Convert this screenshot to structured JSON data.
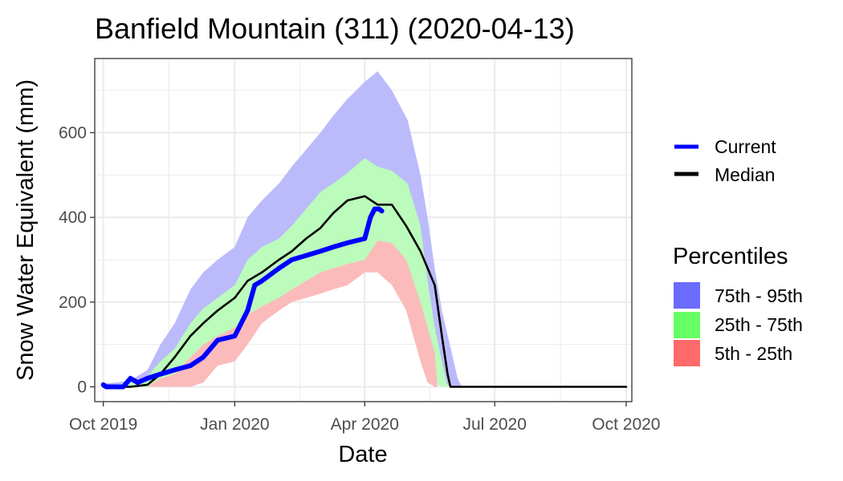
{
  "chart_data": {
    "type": "area",
    "title": "Banfield Mountain (311) (2020-04-13)",
    "xlabel": "Date",
    "ylabel": "Snow Water Equivalent (mm)",
    "x_range": [
      "2019-09-25",
      "2020-10-05"
    ],
    "ylim": [
      -35,
      775
    ],
    "x_ticks": [
      {
        "date": "2019-10-01",
        "label": "Oct 2019"
      },
      {
        "date": "2020-01-01",
        "label": "Jan 2020"
      },
      {
        "date": "2020-04-01",
        "label": "Apr 2020"
      },
      {
        "date": "2020-07-01",
        "label": "Jul 2020"
      },
      {
        "date": "2020-10-01",
        "label": "Oct 2020"
      }
    ],
    "y_ticks": [
      0,
      200,
      400,
      600
    ],
    "grid": true,
    "legend": {
      "lines": [
        {
          "label": "Current",
          "color": "#0000ff"
        },
        {
          "label": "Median",
          "color": "#000000"
        }
      ],
      "fills_title": "Percentiles",
      "fills": [
        {
          "label": "75th - 95th",
          "color": "#6b6bff"
        },
        {
          "label": "25th - 75th",
          "color": "#66ff66"
        },
        {
          "label": "5th - 25th",
          "color": "#ff6b6b"
        }
      ]
    },
    "bands": [
      {
        "name": "75th - 95th",
        "color": "#bbbbfb",
        "dates": [
          "2019-10-01",
          "2019-10-10",
          "2019-10-20",
          "2019-11-01",
          "2019-11-10",
          "2019-11-20",
          "2019-12-01",
          "2019-12-10",
          "2019-12-20",
          "2020-01-01",
          "2020-01-10",
          "2020-01-20",
          "2020-02-01",
          "2020-02-10",
          "2020-02-20",
          "2020-03-01",
          "2020-03-10",
          "2020-03-20",
          "2020-04-01",
          "2020-04-10",
          "2020-04-20",
          "2020-05-01",
          "2020-05-10",
          "2020-05-15",
          "2020-05-20",
          "2020-05-25",
          "2020-06-01",
          "2020-06-05",
          "2020-06-08",
          "2020-10-01"
        ],
        "upper": [
          8,
          10,
          15,
          40,
          100,
          150,
          230,
          270,
          300,
          330,
          400,
          440,
          480,
          520,
          560,
          600,
          640,
          680,
          720,
          745,
          700,
          630,
          500,
          400,
          280,
          180,
          80,
          20,
          0,
          0
        ],
        "lower": [
          0,
          0,
          0,
          5,
          30,
          50,
          100,
          140,
          160,
          200,
          250,
          270,
          300,
          320,
          340,
          370,
          400,
          420,
          450,
          450,
          430,
          340,
          200,
          120,
          50,
          10,
          0,
          0,
          0,
          0
        ]
      },
      {
        "name": "25th - 75th",
        "color": "#bbfbbb",
        "dates": [
          "2019-10-01",
          "2019-10-10",
          "2019-10-20",
          "2019-11-01",
          "2019-11-10",
          "2019-11-20",
          "2019-12-01",
          "2019-12-10",
          "2019-12-20",
          "2020-01-01",
          "2020-01-10",
          "2020-01-20",
          "2020-02-01",
          "2020-02-10",
          "2020-02-20",
          "2020-03-01",
          "2020-03-10",
          "2020-03-20",
          "2020-04-01",
          "2020-04-10",
          "2020-04-20",
          "2020-05-01",
          "2020-05-10",
          "2020-05-15",
          "2020-05-20",
          "2020-05-25",
          "2020-05-29",
          "2020-10-01"
        ],
        "upper": [
          5,
          6,
          10,
          25,
          60,
          90,
          150,
          185,
          210,
          240,
          300,
          330,
          350,
          380,
          420,
          460,
          480,
          505,
          540,
          520,
          510,
          480,
          380,
          250,
          140,
          60,
          0,
          0
        ],
        "lower": [
          0,
          0,
          0,
          0,
          20,
          30,
          70,
          100,
          120,
          140,
          170,
          190,
          210,
          230,
          250,
          270,
          280,
          290,
          300,
          290,
          280,
          200,
          120,
          60,
          10,
          0,
          0,
          0
        ]
      },
      {
        "name": "5th - 25th",
        "color": "#fbbbbb",
        "dates": [
          "2019-10-01",
          "2019-10-10",
          "2019-10-20",
          "2019-11-01",
          "2019-11-10",
          "2019-11-20",
          "2019-12-01",
          "2019-12-10",
          "2019-12-20",
          "2020-01-01",
          "2020-01-10",
          "2020-01-20",
          "2020-02-01",
          "2020-02-10",
          "2020-02-20",
          "2020-03-01",
          "2020-03-10",
          "2020-03-20",
          "2020-04-01",
          "2020-04-10",
          "2020-04-20",
          "2020-04-30",
          "2020-05-10",
          "2020-05-15",
          "2020-05-20",
          "2020-05-22",
          "2020-10-01"
        ],
        "upper": [
          0,
          0,
          0,
          0,
          20,
          30,
          70,
          100,
          120,
          140,
          170,
          190,
          210,
          230,
          250,
          270,
          280,
          290,
          300,
          345,
          340,
          300,
          200,
          140,
          80,
          0,
          0
        ],
        "lower": [
          0,
          0,
          0,
          0,
          0,
          0,
          0,
          10,
          50,
          60,
          100,
          150,
          180,
          200,
          210,
          220,
          230,
          240,
          270,
          270,
          240,
          180,
          60,
          10,
          0,
          0,
          0
        ]
      }
    ],
    "series": [
      {
        "name": "Median",
        "color": "#000000",
        "dates": [
          "2019-10-01",
          "2019-10-10",
          "2019-10-20",
          "2019-11-01",
          "2019-11-10",
          "2019-11-20",
          "2019-12-01",
          "2019-12-10",
          "2019-12-20",
          "2020-01-01",
          "2020-01-10",
          "2020-01-20",
          "2020-02-01",
          "2020-02-10",
          "2020-02-20",
          "2020-03-01",
          "2020-03-10",
          "2020-03-20",
          "2020-04-01",
          "2020-04-10",
          "2020-04-20",
          "2020-04-30",
          "2020-05-10",
          "2020-05-20",
          "2020-05-25",
          "2020-05-29",
          "2020-05-31",
          "2020-10-01"
        ],
        "values": [
          0,
          0,
          0,
          5,
          30,
          70,
          120,
          150,
          180,
          210,
          250,
          270,
          300,
          320,
          350,
          375,
          410,
          440,
          450,
          430,
          430,
          380,
          320,
          240,
          120,
          30,
          0,
          0
        ]
      },
      {
        "name": "Current",
        "color": "#0000ff",
        "dates": [
          "2019-10-01",
          "2019-10-03",
          "2019-10-05",
          "2019-10-10",
          "2019-10-15",
          "2019-10-20",
          "2019-10-25",
          "2019-11-01",
          "2019-11-10",
          "2019-11-20",
          "2019-12-01",
          "2019-12-10",
          "2019-12-20",
          "2020-01-01",
          "2020-01-10",
          "2020-01-15",
          "2020-01-20",
          "2020-02-01",
          "2020-02-10",
          "2020-02-20",
          "2020-03-01",
          "2020-03-10",
          "2020-03-20",
          "2020-04-01",
          "2020-04-05",
          "2020-04-08",
          "2020-04-11",
          "2020-04-13"
        ],
        "values": [
          5,
          0,
          0,
          0,
          0,
          20,
          10,
          20,
          30,
          40,
          50,
          70,
          110,
          120,
          180,
          240,
          250,
          280,
          300,
          310,
          320,
          330,
          340,
          350,
          400,
          420,
          420,
          415
        ]
      }
    ]
  }
}
